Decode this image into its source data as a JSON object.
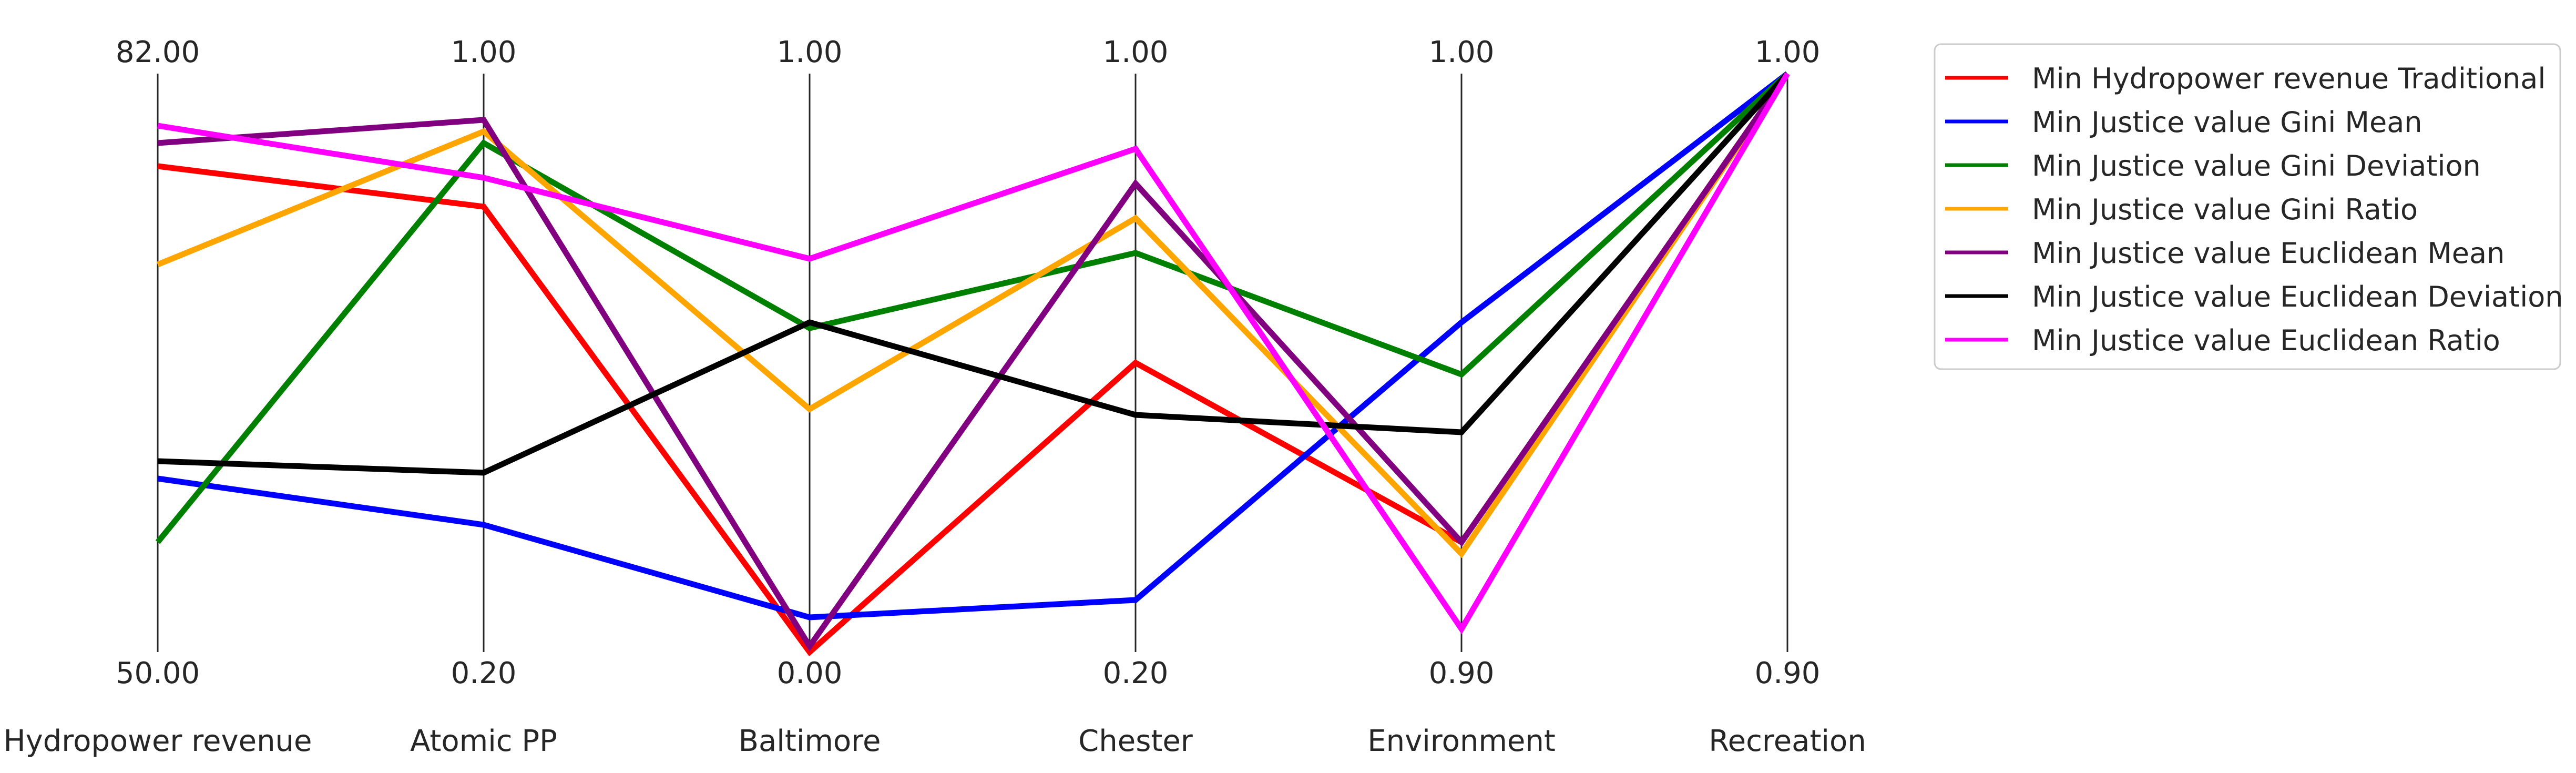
{
  "chart_data": {
    "type": "parallel_coordinates",
    "axes": [
      {
        "name": "Hydropower revenue",
        "max_label": "82.00",
        "min_label": "50.00",
        "min": 50.0,
        "max": 82.0
      },
      {
        "name": "Atomic PP",
        "max_label": "1.00",
        "min_label": "0.20",
        "min": 0.2,
        "max": 1.0
      },
      {
        "name": "Baltimore",
        "max_label": "1.00",
        "min_label": "0.00",
        "min": 0.0,
        "max": 1.0
      },
      {
        "name": "Chester",
        "max_label": "1.00",
        "min_label": "0.20",
        "min": 0.2,
        "max": 1.0
      },
      {
        "name": "Environment",
        "max_label": "1.00",
        "min_label": "0.90",
        "min": 0.9,
        "max": 1.0
      },
      {
        "name": "Recreation",
        "max_label": "1.00",
        "min_label": "0.90",
        "min": 0.9,
        "max": 1.0
      }
    ],
    "series": [
      {
        "name": "Min Hydropower revenue Traditional",
        "color": "#ff0000",
        "values": [
          0.84,
          0.77,
          0.0,
          0.5,
          0.19,
          1.0
        ]
      },
      {
        "name": "Min Justice value Gini Mean",
        "color": "#0000ff",
        "values": [
          0.3,
          0.22,
          0.06,
          0.09,
          0.57,
          1.0
        ]
      },
      {
        "name": "Min Justice value Gini Deviation",
        "color": "#008000",
        "values": [
          0.19,
          0.88,
          0.56,
          0.69,
          0.48,
          1.0
        ]
      },
      {
        "name": "Min Justice value Gini Ratio",
        "color": "#ffa500",
        "values": [
          0.67,
          0.9,
          0.42,
          0.75,
          0.17,
          1.0
        ]
      },
      {
        "name": "Min Justice value Euclidean Mean",
        "color": "#800080",
        "values": [
          0.88,
          0.92,
          0.01,
          0.81,
          0.19,
          1.0
        ]
      },
      {
        "name": "Min Justice value Euclidean Deviation",
        "color": "#000000",
        "values": [
          0.33,
          0.31,
          0.57,
          0.41,
          0.38,
          1.0
        ]
      },
      {
        "name": "Min Justice value Euclidean Ratio",
        "color": "#ff00ff",
        "values": [
          0.91,
          0.82,
          0.68,
          0.87,
          0.04,
          1.0
        ]
      }
    ],
    "grid": false,
    "legend_position": "top-right outside plot"
  }
}
